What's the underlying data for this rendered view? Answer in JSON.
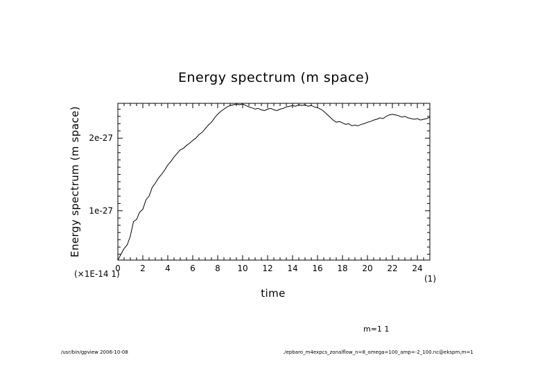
{
  "chart_data": {
    "type": "line",
    "title": "Energy spectrum (m space)",
    "xlabel": "time",
    "ylabel": "Energy spectrum (m space)",
    "x_unit": "(1)",
    "y_scale_note": "(×1E-14 1)",
    "xlim": [
      0,
      25
    ],
    "ylim": [
      3.2e-28,
      2.48e-27
    ],
    "x_ticks": [
      "0",
      "2",
      "4",
      "6",
      "8",
      "10",
      "12",
      "14",
      "16",
      "18",
      "20",
      "22",
      "24"
    ],
    "y_ticks": [
      {
        "value": 1e-27,
        "label": "1e-27"
      },
      {
        "value": 2e-27,
        "label": "2e-27"
      }
    ],
    "legend": "m=1 1",
    "series": [
      {
        "name": "m=1",
        "x": [
          0,
          0.25,
          0.5,
          0.75,
          1,
          1.25,
          1.5,
          1.75,
          2,
          2.25,
          2.5,
          2.75,
          3,
          3.25,
          3.5,
          3.75,
          4,
          4.25,
          4.5,
          4.75,
          5,
          5.25,
          5.5,
          5.75,
          6,
          6.25,
          6.5,
          6.75,
          7,
          7.25,
          7.5,
          7.75,
          8,
          8.25,
          8.5,
          8.75,
          9,
          9.25,
          9.5,
          9.75,
          10,
          10.25,
          10.5,
          10.75,
          11,
          11.25,
          11.5,
          11.75,
          12,
          12.25,
          12.5,
          12.75,
          13,
          13.25,
          13.5,
          13.75,
          14,
          14.25,
          14.5,
          14.75,
          15,
          15.25,
          15.5,
          15.75,
          16,
          16.25,
          16.5,
          16.75,
          17,
          17.25,
          17.5,
          17.75,
          18,
          18.25,
          18.5,
          18.75,
          19,
          19.25,
          19.5,
          19.75,
          20,
          20.25,
          20.5,
          20.75,
          21,
          21.25,
          21.5,
          21.75,
          22,
          22.25,
          22.5,
          22.75,
          23,
          23.25,
          23.5,
          23.75,
          24,
          24.25,
          24.5,
          24.75,
          25
        ],
        "values": [
          3.2e-28,
          4e-28,
          4.8e-28,
          5.3e-28,
          6.5e-28,
          8.5e-28,
          8.8e-28,
          9.8e-28,
          1.02e-27,
          1.15e-27,
          1.2e-27,
          1.32e-27,
          1.38e-27,
          1.45e-27,
          1.5e-27,
          1.56e-27,
          1.63e-27,
          1.68e-27,
          1.74e-27,
          1.79e-27,
          1.84e-27,
          1.86e-27,
          1.9e-27,
          1.93e-27,
          1.97e-27,
          2e-27,
          2.05e-27,
          2.08e-27,
          2.13e-27,
          2.18e-27,
          2.22e-27,
          2.28e-27,
          2.33e-27,
          2.37e-27,
          2.4e-27,
          2.43e-27,
          2.45e-27,
          2.46e-27,
          2.47e-27,
          2.46e-27,
          2.47e-27,
          2.45e-27,
          2.43e-27,
          2.42e-27,
          2.4e-27,
          2.41e-27,
          2.39e-27,
          2.38e-27,
          2.4e-27,
          2.41e-27,
          2.39e-27,
          2.38e-27,
          2.4e-27,
          2.41e-27,
          2.43e-27,
          2.44e-27,
          2.45e-27,
          2.44e-27,
          2.46e-27,
          2.45e-27,
          2.46e-27,
          2.44e-27,
          2.45e-27,
          2.43e-27,
          2.42e-27,
          2.4e-27,
          2.37e-27,
          2.33e-27,
          2.29e-27,
          2.25e-27,
          2.22e-27,
          2.23e-27,
          2.21e-27,
          2.19e-27,
          2.2e-27,
          2.17e-27,
          2.18e-27,
          2.17e-27,
          2.19e-27,
          2.2e-27,
          2.22e-27,
          2.23e-27,
          2.25e-27,
          2.26e-27,
          2.28e-27,
          2.27e-27,
          2.3e-27,
          2.32e-27,
          2.33e-27,
          2.32e-27,
          2.31e-27,
          2.29e-27,
          2.3e-27,
          2.28e-27,
          2.27e-27,
          2.26e-27,
          2.27e-27,
          2.25e-27,
          2.26e-27,
          2.27e-27,
          2.29e-27
        ]
      }
    ]
  },
  "footer": {
    "left": "/usr/bin/gpview  2006-10-08",
    "right": "./epbaro_m4expcs_zonalflow_n=8_omega=100_amp=-2_100.nc@ekspm,m=1"
  }
}
